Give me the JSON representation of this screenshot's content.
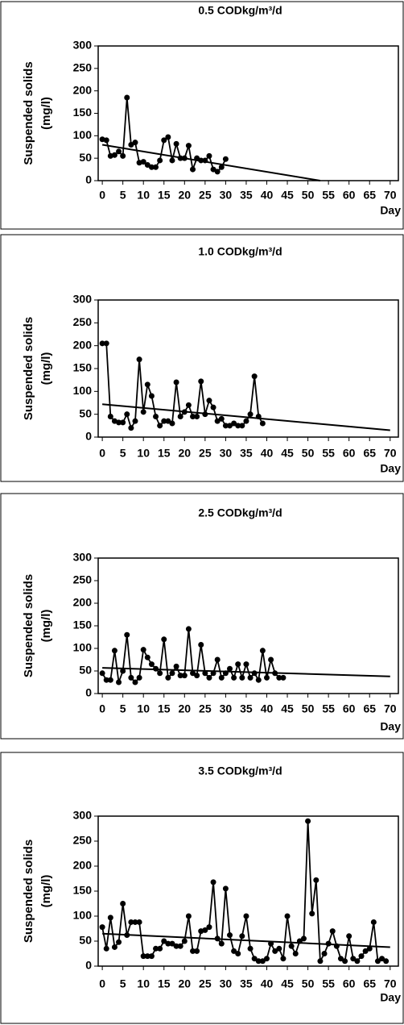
{
  "chart_data": [
    {
      "type": "line",
      "title": "0.5 CODkg/m³/d",
      "ylabel": [
        "Suspended solids",
        "(mg/l)"
      ],
      "xlabel": "Day",
      "xlim": [
        -1,
        72
      ],
      "xticks": [
        0,
        5,
        10,
        15,
        20,
        25,
        30,
        35,
        40,
        45,
        50,
        55,
        60,
        65,
        70
      ],
      "ylim": [
        0,
        300
      ],
      "yticks": [
        0,
        50,
        100,
        150,
        200,
        250,
        300
      ],
      "grid": false,
      "series": [
        {
          "color": "#000000",
          "x": [
            0,
            1,
            2,
            3,
            4,
            5,
            6,
            7,
            8,
            9,
            10,
            11,
            12,
            13,
            14,
            15,
            16,
            17,
            18,
            19,
            20,
            21,
            22,
            23,
            24,
            25,
            26,
            27,
            28,
            29,
            30
          ],
          "values": [
            92,
            90,
            55,
            57,
            65,
            55,
            185,
            80,
            85,
            40,
            42,
            35,
            30,
            30,
            45,
            90,
            97,
            45,
            82,
            50,
            50,
            78,
            25,
            50,
            45,
            45,
            55,
            25,
            20,
            30,
            48
          ]
        },
        {
          "color": "#000000",
          "x": [
            0,
            53
          ],
          "values": [
            80,
            0
          ]
        }
      ]
    },
    {
      "type": "line",
      "title": "1.0 CODkg/m³/d",
      "ylabel": [
        "Suspended solids",
        "(mg/l)"
      ],
      "xlabel": "Day",
      "xlim": [
        -1,
        72
      ],
      "xticks": [
        0,
        5,
        10,
        15,
        20,
        25,
        30,
        35,
        40,
        45,
        50,
        55,
        60,
        65,
        70
      ],
      "ylim": [
        0,
        300
      ],
      "yticks": [
        0,
        50,
        100,
        150,
        200,
        250,
        300
      ],
      "grid": false,
      "series": [
        {
          "color": "#000000",
          "x": [
            0,
            1,
            2,
            3,
            4,
            5,
            6,
            7,
            8,
            9,
            10,
            11,
            12,
            13,
            14,
            15,
            16,
            17,
            18,
            19,
            20,
            21,
            22,
            23,
            24,
            25,
            26,
            27,
            28,
            29,
            30,
            31,
            32,
            33,
            34,
            35,
            36,
            37,
            38,
            39
          ],
          "values": [
            205,
            205,
            45,
            35,
            32,
            32,
            50,
            20,
            35,
            170,
            55,
            115,
            90,
            45,
            25,
            35,
            35,
            30,
            120,
            45,
            55,
            70,
            45,
            45,
            122,
            50,
            80,
            65,
            35,
            40,
            25,
            25,
            30,
            25,
            25,
            35,
            50,
            133,
            45,
            30
          ]
        },
        {
          "color": "#000000",
          "x": [
            0,
            70
          ],
          "values": [
            72,
            15
          ]
        }
      ]
    },
    {
      "type": "line",
      "title": "2.5 CODkg/m³/d",
      "ylabel": [
        "Suspended solids",
        "(mg/l)"
      ],
      "xlabel": "Day",
      "xlim": [
        -1,
        72
      ],
      "xticks": [
        0,
        5,
        10,
        15,
        20,
        25,
        30,
        35,
        40,
        45,
        50,
        55,
        60,
        65,
        70
      ],
      "ylim": [
        0,
        300
      ],
      "yticks": [
        0,
        50,
        100,
        150,
        200,
        250,
        300
      ],
      "grid": false,
      "series": [
        {
          "color": "#000000",
          "x": [
            0,
            1,
            2,
            3,
            4,
            5,
            6,
            7,
            8,
            9,
            10,
            11,
            12,
            13,
            14,
            15,
            16,
            17,
            18,
            19,
            20,
            21,
            22,
            23,
            24,
            25,
            26,
            27,
            28,
            29,
            30,
            31,
            32,
            33,
            34,
            35,
            36,
            37,
            38,
            39,
            40,
            41,
            42,
            43,
            44
          ],
          "values": [
            45,
            30,
            30,
            95,
            25,
            50,
            130,
            35,
            25,
            35,
            97,
            80,
            65,
            55,
            45,
            120,
            35,
            45,
            60,
            40,
            40,
            143,
            45,
            40,
            108,
            45,
            35,
            45,
            75,
            35,
            45,
            55,
            35,
            65,
            35,
            65,
            35,
            45,
            30,
            95,
            35,
            75,
            45,
            35,
            35
          ]
        },
        {
          "color": "#000000",
          "x": [
            0,
            70
          ],
          "values": [
            57,
            38
          ]
        }
      ]
    },
    {
      "type": "line",
      "title": "3.5 CODkg/m³/d",
      "ylabel": [
        "Suspended solids",
        "(mg/l)"
      ],
      "xlabel": "Day",
      "xlim": [
        -1,
        72
      ],
      "xticks": [
        0,
        5,
        10,
        15,
        20,
        25,
        30,
        35,
        40,
        45,
        50,
        55,
        60,
        65,
        70
      ],
      "ylim": [
        0,
        300
      ],
      "yticks": [
        0,
        50,
        100,
        150,
        200,
        250,
        300
      ],
      "grid": false,
      "series": [
        {
          "color": "#000000",
          "x": [
            0,
            1,
            2,
            3,
            4,
            5,
            6,
            7,
            8,
            9,
            10,
            11,
            12,
            13,
            14,
            15,
            16,
            17,
            18,
            19,
            20,
            21,
            22,
            23,
            24,
            25,
            26,
            27,
            28,
            29,
            30,
            31,
            32,
            33,
            34,
            35,
            36,
            37,
            38,
            39,
            40,
            41,
            42,
            43,
            44,
            45,
            46,
            47,
            48,
            49,
            50,
            51,
            52,
            53,
            54,
            55,
            56,
            57,
            58,
            59,
            60,
            61,
            62,
            63,
            64,
            65,
            66,
            67,
            68,
            69
          ],
          "values": [
            78,
            35,
            97,
            38,
            48,
            125,
            62,
            88,
            88,
            88,
            20,
            20,
            20,
            35,
            35,
            50,
            45,
            45,
            40,
            40,
            50,
            100,
            30,
            30,
            70,
            72,
            78,
            168,
            55,
            45,
            155,
            62,
            30,
            25,
            60,
            100,
            35,
            15,
            10,
            10,
            15,
            45,
            30,
            35,
            15,
            100,
            40,
            25,
            50,
            55,
            290,
            105,
            172,
            10,
            25,
            45,
            70,
            40,
            15,
            10,
            60,
            15,
            10,
            20,
            30,
            35,
            88,
            10,
            15,
            10
          ]
        },
        {
          "color": "#000000",
          "x": [
            0,
            70
          ],
          "values": [
            65,
            38
          ]
        }
      ]
    }
  ]
}
